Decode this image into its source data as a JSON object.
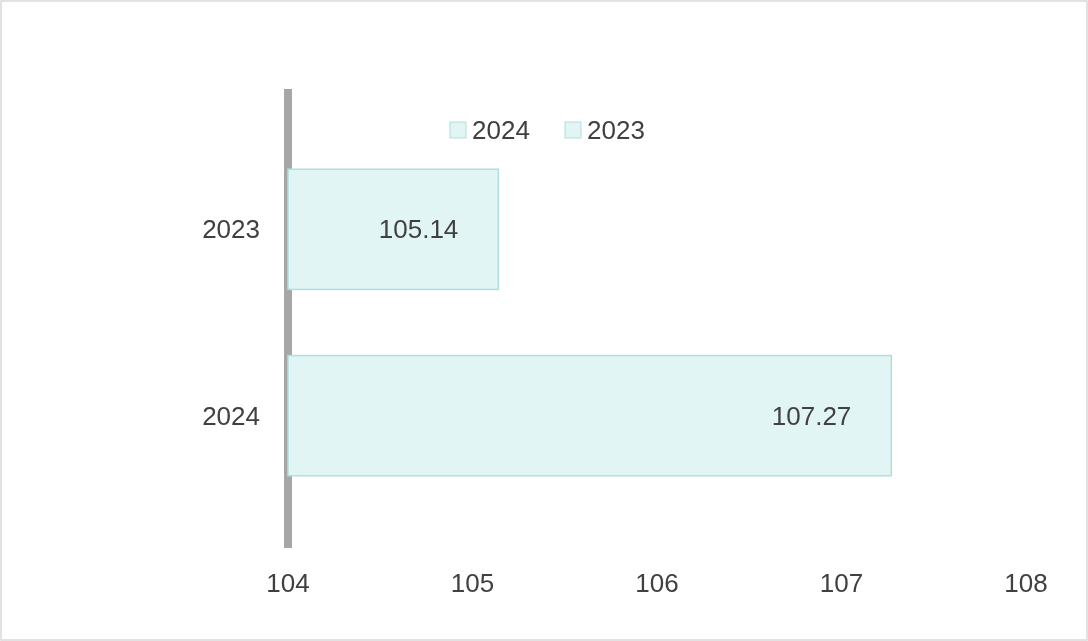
{
  "chart_data": {
    "type": "bar",
    "orientation": "horizontal",
    "stacked": true,
    "categories": [
      "2023",
      "2024"
    ],
    "series": [
      {
        "name": "2024",
        "color": "#e2f5f5",
        "values": [
          null,
          107.27
        ]
      },
      {
        "name": "2023",
        "color": "#e2f5f5",
        "values": [
          105.14,
          null
        ]
      }
    ],
    "xlim": [
      104,
      108
    ],
    "xticks": [
      104,
      105,
      106,
      107,
      108
    ],
    "data_labels": true,
    "legend": "top",
    "grid": false
  }
}
